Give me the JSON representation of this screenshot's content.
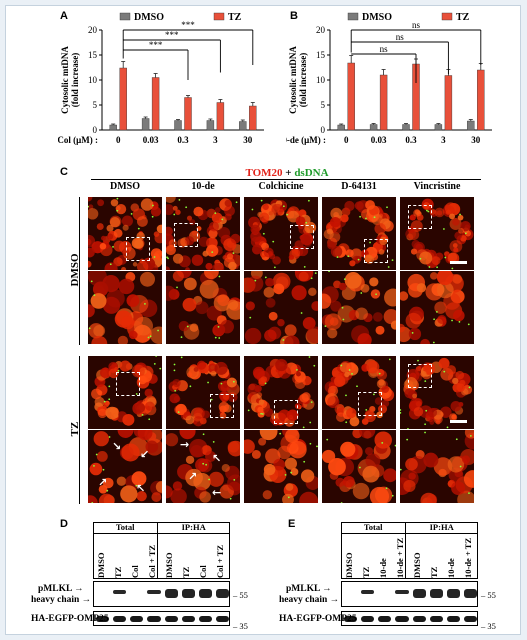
{
  "chart_data": [
    {
      "panel": "A",
      "type": "bar",
      "ylabel": "Cytosolic mtDNA (fold increase)",
      "xlabel": "Col (μM) :",
      "categories": [
        "0",
        "0.03",
        "0.3",
        "3",
        "30"
      ],
      "ylim": [
        0,
        20
      ],
      "yticks": [
        0,
        5,
        10,
        15,
        20
      ],
      "legend": [
        "DMSO",
        "TZ"
      ],
      "series": [
        {
          "name": "DMSO",
          "color": "#7b7b7b",
          "values": [
            1.0,
            2.3,
            1.9,
            1.9,
            1.7
          ],
          "errors": [
            0.2,
            0.3,
            0.2,
            0.3,
            0.3
          ]
        },
        {
          "name": "TZ",
          "color": "#e8503a",
          "values": [
            12.4,
            10.5,
            6.5,
            5.5,
            4.8
          ],
          "errors": [
            1.3,
            0.8,
            0.4,
            0.6,
            0.7
          ]
        }
      ],
      "significance": [
        "***",
        "***",
        "***"
      ]
    },
    {
      "panel": "B",
      "type": "bar",
      "ylabel": "Cytosolic mtDNA (fold increase)",
      "xlabel": "10-de (μM) :",
      "categories": [
        "0",
        "0.03",
        "0.3",
        "3",
        "30"
      ],
      "ylim": [
        0,
        20
      ],
      "yticks": [
        0,
        5,
        10,
        15,
        20
      ],
      "legend": [
        "DMSO",
        "TZ"
      ],
      "series": [
        {
          "name": "DMSO",
          "color": "#7b7b7b",
          "values": [
            1.0,
            1.1,
            1.1,
            1.1,
            1.8
          ],
          "errors": [
            0.2,
            0.2,
            0.2,
            0.2,
            0.3
          ]
        },
        {
          "name": "TZ",
          "color": "#e8503a",
          "values": [
            13.4,
            11.0,
            13.2,
            10.9,
            12.0
          ],
          "errors": [
            1.5,
            1.1,
            1.0,
            1.2,
            1.3
          ]
        }
      ],
      "significance": [
        "ns",
        "ns",
        "ns"
      ]
    }
  ],
  "panel_labels": {
    "a": "A",
    "b": "B",
    "c": "C",
    "d": "D",
    "e": "E"
  },
  "micro": {
    "title_red": "TOM20",
    "title_plus": " + ",
    "title_green": "dsDNA",
    "columns": [
      "DMSO",
      "10-de",
      "Colchicine",
      "D-64131",
      "Vincristine"
    ],
    "rows": [
      "DMSO",
      "TZ"
    ]
  },
  "blot_d": {
    "groups": [
      "Total",
      "IP:HA"
    ],
    "lanes": [
      "DMSO",
      "TZ",
      "Col",
      "Col + TZ",
      "DMSO",
      "TZ",
      "Col",
      "Col + TZ"
    ],
    "label_pmlkl": "pMLKL",
    "label_heavy": "heavy chain",
    "label_bottom": "HA-EGFP-OMP25",
    "mw_top": "55",
    "mw_bottom": "35"
  },
  "blot_e": {
    "groups": [
      "Total",
      "IP:HA"
    ],
    "lanes": [
      "DMSO",
      "TZ",
      "10-de",
      "10-de + TZ",
      "DMSO",
      "TZ",
      "10-de",
      "10-de + TZ"
    ],
    "label_pmlkl": "pMLKL",
    "label_heavy": "heavy chain",
    "label_bottom": "HA-EGFP-OMP25",
    "mw_top": "55",
    "mw_bottom": "35"
  }
}
